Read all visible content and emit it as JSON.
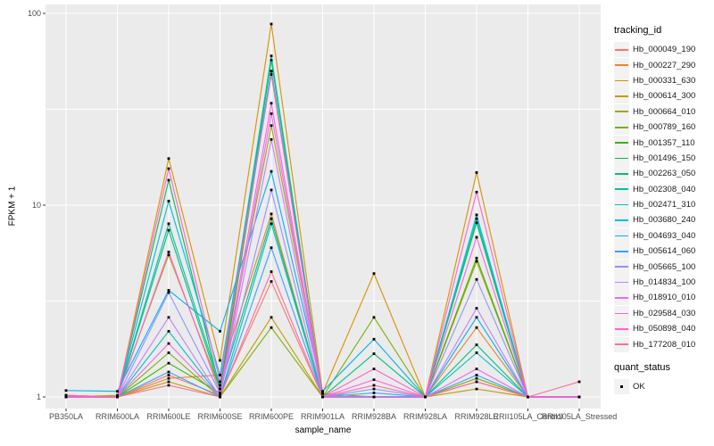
{
  "chart_data": {
    "type": "line",
    "xlabel": "sample_name",
    "ylabel": "FPKM + 1",
    "yscale": "log10",
    "ylim": [
      1,
      100
    ],
    "yticks": [
      1,
      10,
      100
    ],
    "ytick_labels": [
      "1",
      "10",
      "100"
    ],
    "minor_yticks": [
      3.1623,
      31.6228
    ],
    "grid": true,
    "panel_bg": "#EBEBEB",
    "grid_color": "#FFFFFF",
    "point_color": "#000000",
    "axis_text_color": "#4D4D4D",
    "legend_position": "right",
    "categories": [
      "PB350LA",
      "RRIM600LA",
      "RRIM600LE",
      "RRIM600SE",
      "RRIM600PE",
      "RRIM901LA",
      "RRIM928BA",
      "RRIM928LA",
      "RRIM928LE",
      "RRII105LA_Control",
      "RRII105LA_Stressed"
    ],
    "series": [
      {
        "name": "Hb_000049_190",
        "color": "#F8766D",
        "values": [
          1.02,
          1.0,
          1.3,
          1.02,
          4.0,
          1.0,
          1.0,
          1.0,
          1.2,
          1.0,
          1.0
        ]
      },
      {
        "name": "Hb_000227_290",
        "color": "#EA8331",
        "values": [
          1.0,
          1.0,
          1.25,
          1.3,
          9.0,
          1.0,
          1.0,
          1.0,
          2.3,
          1.0,
          1.0
        ]
      },
      {
        "name": "Hb_000331_630",
        "color": "#D89000",
        "values": [
          1.0,
          1.0,
          17.5,
          1.55,
          88.0,
          1.05,
          4.4,
          1.0,
          14.8,
          1.0,
          1.0
        ]
      },
      {
        "name": "Hb_000614_300",
        "color": "#C09B00",
        "values": [
          1.0,
          1.0,
          1.2,
          1.0,
          2.6,
          1.0,
          1.0,
          1.0,
          1.1,
          1.0,
          1.0
        ]
      },
      {
        "name": "Hb_000664_010",
        "color": "#A3A500",
        "values": [
          1.0,
          1.02,
          5.5,
          1.1,
          26.0,
          1.04,
          1.0,
          1.0,
          5.1,
          1.0,
          1.0
        ]
      },
      {
        "name": "Hb_000789_160",
        "color": "#7CAE00",
        "values": [
          1.0,
          1.0,
          1.7,
          1.0,
          2.3,
          1.0,
          2.6,
          1.0,
          1.25,
          1.0,
          1.0
        ]
      },
      {
        "name": "Hb_001357_110",
        "color": "#39B600",
        "values": [
          1.0,
          1.0,
          1.5,
          1.05,
          50.0,
          1.0,
          1.0,
          1.0,
          5.3,
          1.0,
          1.0
        ]
      },
      {
        "name": "Hb_001496_150",
        "color": "#00BB4E",
        "values": [
          1.0,
          1.0,
          13.5,
          1.1,
          57.0,
          1.0,
          1.0,
          1.0,
          8.1,
          1.0,
          1.0
        ]
      },
      {
        "name": "Hb_002263_050",
        "color": "#00BF7D",
        "values": [
          1.0,
          1.0,
          7.4,
          1.1,
          8.5,
          1.0,
          1.68,
          1.0,
          1.87,
          1.0,
          1.0
        ]
      },
      {
        "name": "Hb_002308_040",
        "color": "#00C1A3",
        "values": [
          1.0,
          1.0,
          8.0,
          1.15,
          60.0,
          1.0,
          1.0,
          1.0,
          8.5,
          1.0,
          1.0
        ]
      },
      {
        "name": "Hb_002471_310",
        "color": "#00BFC4",
        "values": [
          1.0,
          1.0,
          2.2,
          1.0,
          8.0,
          1.0,
          1.0,
          1.0,
          1.7,
          1.0,
          1.0
        ]
      },
      {
        "name": "Hb_003680_240",
        "color": "#00BAE0",
        "values": [
          1.0,
          1.0,
          10.5,
          1.3,
          50.0,
          1.0,
          1.0,
          1.0,
          8.9,
          1.0,
          1.0
        ]
      },
      {
        "name": "Hb_004693_040",
        "color": "#00B0F6",
        "values": [
          1.08,
          1.07,
          3.6,
          2.2,
          15.0,
          1.07,
          2.0,
          1.0,
          2.6,
          1.0,
          1.0
        ]
      },
      {
        "name": "Hb_005614_060",
        "color": "#35A2FF",
        "values": [
          1.0,
          1.0,
          1.35,
          1.0,
          6.0,
          1.0,
          1.05,
          1.0,
          1.3,
          1.0,
          1.0
        ]
      },
      {
        "name": "Hb_005665_100",
        "color": "#9590FF",
        "values": [
          1.0,
          1.0,
          3.5,
          1.05,
          12.0,
          1.0,
          1.1,
          1.0,
          4.1,
          1.0,
          1.0
        ]
      },
      {
        "name": "Hb_014834_100",
        "color": "#C77CFF",
        "values": [
          1.0,
          1.0,
          2.6,
          1.0,
          22.0,
          1.0,
          1.0,
          1.0,
          2.9,
          1.0,
          1.0
        ]
      },
      {
        "name": "Hb_018910_010",
        "color": "#E76BF3",
        "values": [
          1.0,
          1.0,
          1.9,
          1.0,
          30.0,
          1.0,
          1.0,
          1.0,
          1.4,
          1.0,
          1.0
        ]
      },
      {
        "name": "Hb_029584_030",
        "color": "#FA62DB",
        "values": [
          1.0,
          1.0,
          5.7,
          1.05,
          34.0,
          1.0,
          1.23,
          1.0,
          6.8,
          1.0,
          1.0
        ]
      },
      {
        "name": "Hb_050898_040",
        "color": "#FF61CC",
        "values": [
          1.0,
          1.0,
          15.5,
          1.2,
          48.0,
          1.0,
          1.4,
          1.0,
          11.7,
          1.0,
          1.0
        ]
      },
      {
        "name": "Hb_177208_010",
        "color": "#FF6A98",
        "values": [
          1.02,
          1.0,
          1.15,
          1.0,
          4.5,
          1.0,
          1.15,
          1.0,
          1.2,
          1.0,
          1.2
        ]
      }
    ],
    "legend": {
      "tracking_title": "tracking_id",
      "quant_title": "quant_status",
      "quant_items": [
        {
          "label": "OK",
          "marker": "black-square"
        }
      ]
    }
  }
}
